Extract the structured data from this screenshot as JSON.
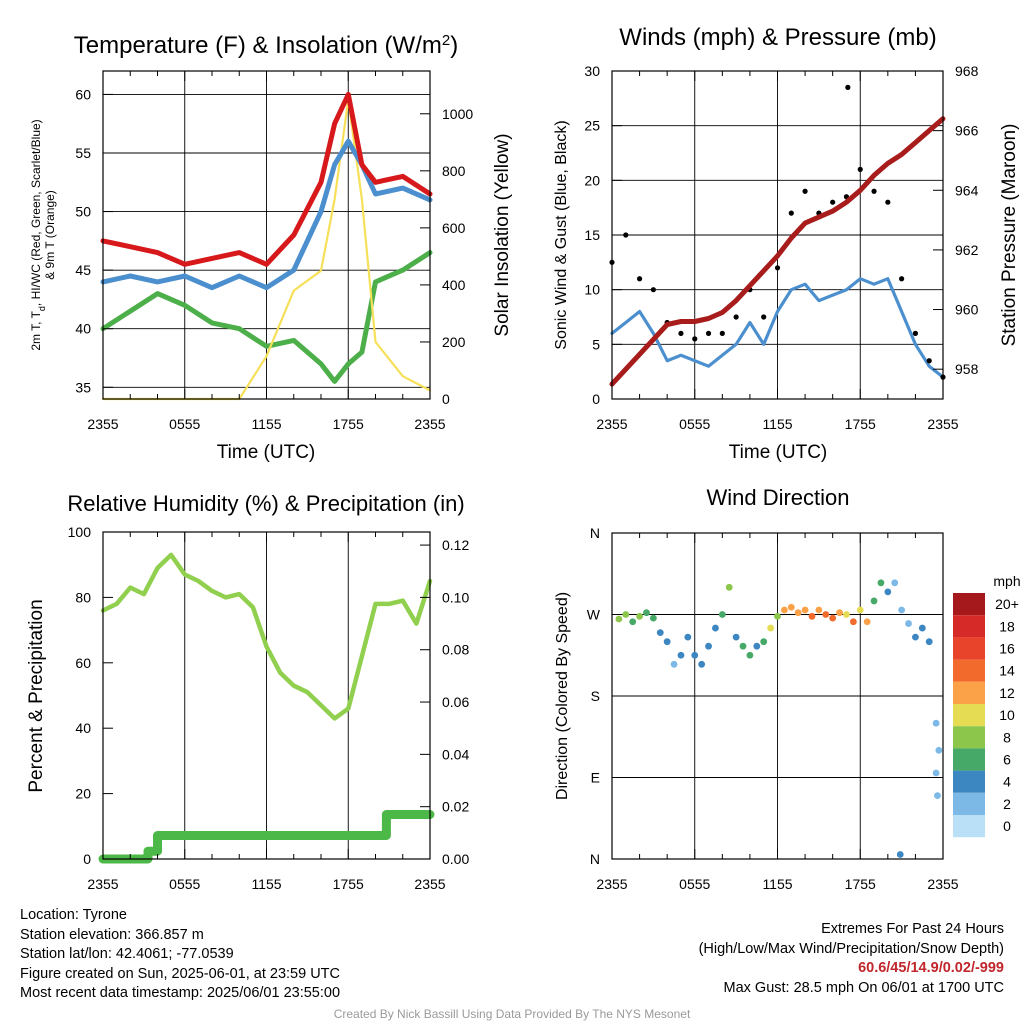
{
  "time_ticks": [
    "2355",
    "0555",
    "1155",
    "1755",
    "2355"
  ],
  "colors": {
    "temperature": "#d7191c",
    "heat_index": "#fdae61",
    "dewpoint": "#4daf4a",
    "nine_m_temp": "#fd8d3c",
    "wind_chill": "#4b8fcf",
    "insolation": "#f6e05a",
    "sonic_wind": "#4b8fcf",
    "gust": "#000000",
    "pressure": "#a81c1c",
    "rh": "#91cf4f",
    "precip": "#4cb847"
  },
  "chart_data": [
    {
      "type": "line",
      "title": "Temperature (F) & Insolation (W/m²)",
      "xlabel": "Time (UTC)",
      "ylabel": "2m T, T_d, HI/WC (Red, Green, Scarlet/Blue) & 9m T (Orange)",
      "ylabel_line1": "2m T, T",
      "ylabel_sub": "d",
      "ylabel_line1_rest": ", HI/WC (Red, Green, Scarlet/Blue)",
      "ylabel_line2": "& 9m T (Orange)",
      "y2label": "Solar Insolation (Yellow)",
      "x_ticks": [
        "2355",
        "0555",
        "1155",
        "1755",
        "2355"
      ],
      "ylim": [
        34,
        62
      ],
      "y_ticks": [
        35,
        40,
        45,
        50,
        55,
        60
      ],
      "y2lim": [
        0,
        1150
      ],
      "y2_ticks": [
        0,
        200,
        400,
        600,
        800,
        1000
      ],
      "x_hours": [
        0,
        2,
        4,
        6,
        8,
        10,
        12,
        14,
        16,
        17,
        18,
        19,
        20,
        22,
        24
      ],
      "series": [
        {
          "key": "temp",
          "axis": "left",
          "values": [
            47.5,
            47,
            46.5,
            45.5,
            46,
            46.5,
            45.5,
            48,
            52.5,
            57.5,
            60,
            54,
            52.5,
            53,
            51.5
          ]
        },
        {
          "key": "wind_chill",
          "axis": "left",
          "values": [
            44,
            44.5,
            44,
            44.5,
            43.5,
            44.5,
            43.5,
            45,
            50,
            54,
            56,
            54,
            51.5,
            52,
            51
          ]
        },
        {
          "key": "dewpoint",
          "axis": "left",
          "values": [
            40,
            41.5,
            43,
            42,
            40.5,
            40,
            38.5,
            39,
            37,
            35.5,
            37,
            38,
            44,
            45,
            46.5
          ]
        },
        {
          "key": "insolation",
          "axis": "right",
          "values": [
            0,
            0,
            0,
            0,
            0,
            0,
            150,
            380,
            450,
            700,
            1050,
            700,
            200,
            80,
            30
          ]
        }
      ]
    },
    {
      "type": "scatter",
      "title": "Winds (mph) & Pressure (mb)",
      "xlabel": "Time (UTC)",
      "ylabel": "Sonic Wind & Gust (Blue, Black)",
      "y2label": "Station Pressure (Maroon)",
      "x_ticks": [
        "2355",
        "0555",
        "1155",
        "1755",
        "2355"
      ],
      "ylim": [
        0,
        30
      ],
      "y_ticks": [
        0,
        5,
        10,
        15,
        20,
        25,
        30
      ],
      "y2lim": [
        957,
        968
      ],
      "y2_ticks": [
        958,
        960,
        962,
        964,
        966,
        968
      ],
      "x_hours": [
        0,
        1,
        2,
        3,
        4,
        5,
        6,
        7,
        8,
        9,
        10,
        11,
        12,
        13,
        14,
        15,
        16,
        17,
        18,
        19,
        20,
        21,
        22,
        23,
        24
      ],
      "series": [
        {
          "key": "sonic_wind",
          "axis": "left",
          "values": [
            6,
            7,
            8,
            6,
            3.5,
            4,
            3.5,
            3,
            4,
            5,
            7,
            5,
            8,
            10,
            10.5,
            9,
            9.5,
            10,
            11,
            10.5,
            11,
            8,
            5,
            3,
            2
          ]
        },
        {
          "key": "gust",
          "axis": "left",
          "values": [
            12.5,
            15,
            11,
            10,
            7,
            6,
            5.5,
            6,
            6,
            7.5,
            10,
            7.5,
            12,
            17,
            19,
            17,
            18,
            18.5,
            21,
            19,
            18,
            11,
            6,
            3.5,
            2
          ]
        },
        {
          "key": "pressure",
          "axis": "right",
          "values": [
            957.5,
            958,
            958.5,
            959,
            959.5,
            959.6,
            959.6,
            959.7,
            959.9,
            960.3,
            960.8,
            961.3,
            961.8,
            962.4,
            962.9,
            963.1,
            963.3,
            963.6,
            964,
            964.5,
            964.9,
            965.2,
            965.6,
            966,
            966.4
          ]
        }
      ],
      "max_gust_hour": 17.1,
      "max_gust_value": 28.5
    },
    {
      "type": "line",
      "title": "Relative Humidity (%) & Precipitation (in)",
      "ylabel": "Percent & Precipitation",
      "x_ticks": [
        "2355",
        "0555",
        "1155",
        "1755",
        "2355"
      ],
      "ylim": [
        0,
        100
      ],
      "y_ticks": [
        0,
        20,
        40,
        60,
        80,
        100
      ],
      "y2lim": [
        0,
        0.125
      ],
      "y2_ticks": [
        "0.00",
        "0.02",
        "0.04",
        "0.06",
        "0.08",
        "0.10",
        "0.12"
      ],
      "y2_tick_values": [
        0,
        0.02,
        0.04,
        0.06,
        0.08,
        0.1,
        0.12
      ],
      "x_hours": [
        0,
        1,
        2,
        3,
        4,
        5,
        6,
        7,
        8,
        9,
        10,
        11,
        12,
        13,
        14,
        15,
        16,
        17,
        18,
        19,
        20,
        21,
        22,
        23,
        24
      ],
      "series": [
        {
          "key": "rh",
          "axis": "left",
          "values": [
            76,
            78,
            83,
            81,
            89,
            93,
            87,
            85,
            82,
            80,
            81,
            77,
            65,
            57,
            53,
            51,
            47,
            43,
            46,
            62,
            78,
            78,
            79,
            72,
            85
          ]
        },
        {
          "key": "precip",
          "axis": "right",
          "x": [
            0,
            3.3,
            3.3,
            4.0,
            4.0,
            20.8,
            20.8,
            24
          ],
          "values": [
            0,
            0,
            0.003,
            0.003,
            0.009,
            0.009,
            0.017,
            0.017
          ]
        }
      ]
    },
    {
      "type": "scatter",
      "title": "Wind Direction",
      "ylabel": "Direction (Colored By Speed)",
      "x_ticks": [
        "2355",
        "0555",
        "1155",
        "1755",
        "2355"
      ],
      "y_ticks": [
        "N",
        "E",
        "S",
        "W",
        "N"
      ],
      "y_tick_values": [
        0,
        90,
        180,
        270,
        360
      ],
      "ylim": [
        0,
        360
      ],
      "legend_title": "mph",
      "legend_labels": [
        "20+",
        "18",
        "16",
        "14",
        "12",
        "10",
        "8",
        "6",
        "4",
        "2",
        "0"
      ],
      "legend_colors": [
        "#a5191c",
        "#d52a28",
        "#e8432b",
        "#f36b2c",
        "#fba249",
        "#e6dc54",
        "#8cc74c",
        "#46a967",
        "#3c86c2",
        "#7cb9e6",
        "#b9e0f7"
      ],
      "points": [
        {
          "h": 0.5,
          "d": 265,
          "s": 8
        },
        {
          "h": 1,
          "d": 270,
          "s": 7
        },
        {
          "h": 1.5,
          "d": 262,
          "s": 6
        },
        {
          "h": 2,
          "d": 268,
          "s": 7
        },
        {
          "h": 2.5,
          "d": 272,
          "s": 6
        },
        {
          "h": 3,
          "d": 266,
          "s": 5
        },
        {
          "h": 3.5,
          "d": 250,
          "s": 4
        },
        {
          "h": 4,
          "d": 240,
          "s": 3
        },
        {
          "h": 4.5,
          "d": 215,
          "s": 2
        },
        {
          "h": 5,
          "d": 225,
          "s": 3
        },
        {
          "h": 5.5,
          "d": 245,
          "s": 4
        },
        {
          "h": 6,
          "d": 225,
          "s": 3
        },
        {
          "h": 6.5,
          "d": 215,
          "s": 3
        },
        {
          "h": 7,
          "d": 235,
          "s": 4
        },
        {
          "h": 7.5,
          "d": 255,
          "s": 4
        },
        {
          "h": 8,
          "d": 270,
          "s": 5
        },
        {
          "h": 8.5,
          "d": 300,
          "s": 7
        },
        {
          "h": 9,
          "d": 245,
          "s": 4
        },
        {
          "h": 9.5,
          "d": 235,
          "s": 5
        },
        {
          "h": 10,
          "d": 225,
          "s": 6
        },
        {
          "h": 10.5,
          "d": 235,
          "s": 4
        },
        {
          "h": 11,
          "d": 240,
          "s": 6
        },
        {
          "h": 11.5,
          "d": 255,
          "s": 9
        },
        {
          "h": 12,
          "d": 268,
          "s": 8
        },
        {
          "h": 12.5,
          "d": 275,
          "s": 11
        },
        {
          "h": 13,
          "d": 278,
          "s": 12
        },
        {
          "h": 13.5,
          "d": 272,
          "s": 11
        },
        {
          "h": 14,
          "d": 275,
          "s": 12
        },
        {
          "h": 14.5,
          "d": 268,
          "s": 13
        },
        {
          "h": 15,
          "d": 275,
          "s": 12
        },
        {
          "h": 15.5,
          "d": 270,
          "s": 13
        },
        {
          "h": 16,
          "d": 266,
          "s": 14
        },
        {
          "h": 16.5,
          "d": 272,
          "s": 12
        },
        {
          "h": 17,
          "d": 270,
          "s": 10
        },
        {
          "h": 17.5,
          "d": 262,
          "s": 13
        },
        {
          "h": 18,
          "d": 275,
          "s": 9
        },
        {
          "h": 18.5,
          "d": 262,
          "s": 12
        },
        {
          "h": 19,
          "d": 285,
          "s": 6
        },
        {
          "h": 19.5,
          "d": 305,
          "s": 5
        },
        {
          "h": 20,
          "d": 295,
          "s": 3
        },
        {
          "h": 20.5,
          "d": 305,
          "s": 2
        },
        {
          "h": 21,
          "d": 275,
          "s": 1
        },
        {
          "h": 21.5,
          "d": 260,
          "s": 2
        },
        {
          "h": 22,
          "d": 245,
          "s": 3
        },
        {
          "h": 22.5,
          "d": 255,
          "s": 3
        },
        {
          "h": 23,
          "d": 240,
          "s": 3
        },
        {
          "h": 23.5,
          "d": 150,
          "s": 2
        },
        {
          "h": 23.7,
          "d": 120,
          "s": 1
        },
        {
          "h": 23.5,
          "d": 95,
          "s": 1
        },
        {
          "h": 23.6,
          "d": 70,
          "s": 1
        },
        {
          "h": 20.9,
          "d": 5,
          "s": 3
        }
      ]
    }
  ],
  "info": {
    "location": "Location: Tyrone",
    "elevation": "Station elevation: 366.857 m",
    "latlon": "Station lat/lon: 42.4061; -77.0539",
    "created": "Figure created on Sun, 2025-06-01, at 23:59 UTC",
    "recent": "Most recent data timestamp: 2025/06/01 23:55:00",
    "extremes_title": "Extremes For Past 24 Hours",
    "extremes_sub": "(High/Low/Max Wind/Precipitation/Snow Depth)",
    "extremes_values": "60.6/45/14.9/0.02/-999",
    "max_gust": "Max Gust: 28.5 mph On 06/01 at 1700 UTC"
  },
  "credit": "Created By Nick Bassill Using Data Provided By The NYS Mesonet"
}
